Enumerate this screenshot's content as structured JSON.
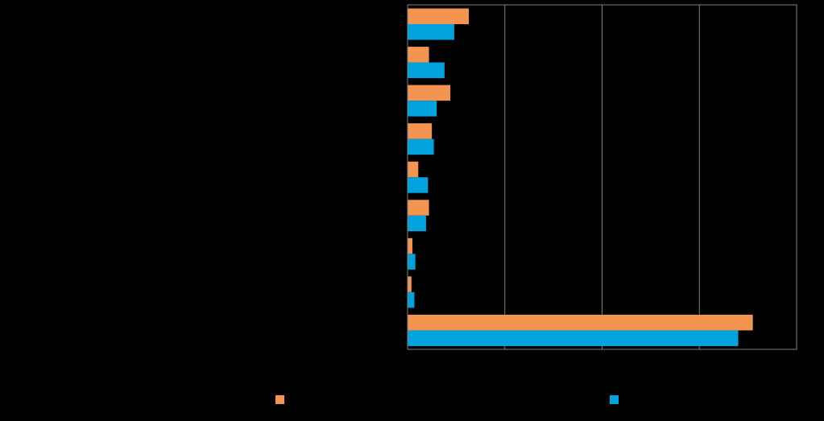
{
  "chart_data": {
    "type": "bar",
    "orientation": "horizontal",
    "categories": [
      "",
      "",
      "",
      "",
      "",
      "",
      "",
      "",
      ""
    ],
    "series": [
      {
        "color": "#f39550",
        "values": [
          0.63,
          0.22,
          0.44,
          0.25,
          0.11,
          0.22,
          0.05,
          0.04,
          3.55
        ]
      },
      {
        "color": "#00a3de",
        "values": [
          0.48,
          0.38,
          0.3,
          0.27,
          0.21,
          0.19,
          0.08,
          0.07,
          3.4
        ]
      }
    ],
    "xlim": [
      0,
      4
    ],
    "grid": true,
    "legend_position": "bottom"
  }
}
